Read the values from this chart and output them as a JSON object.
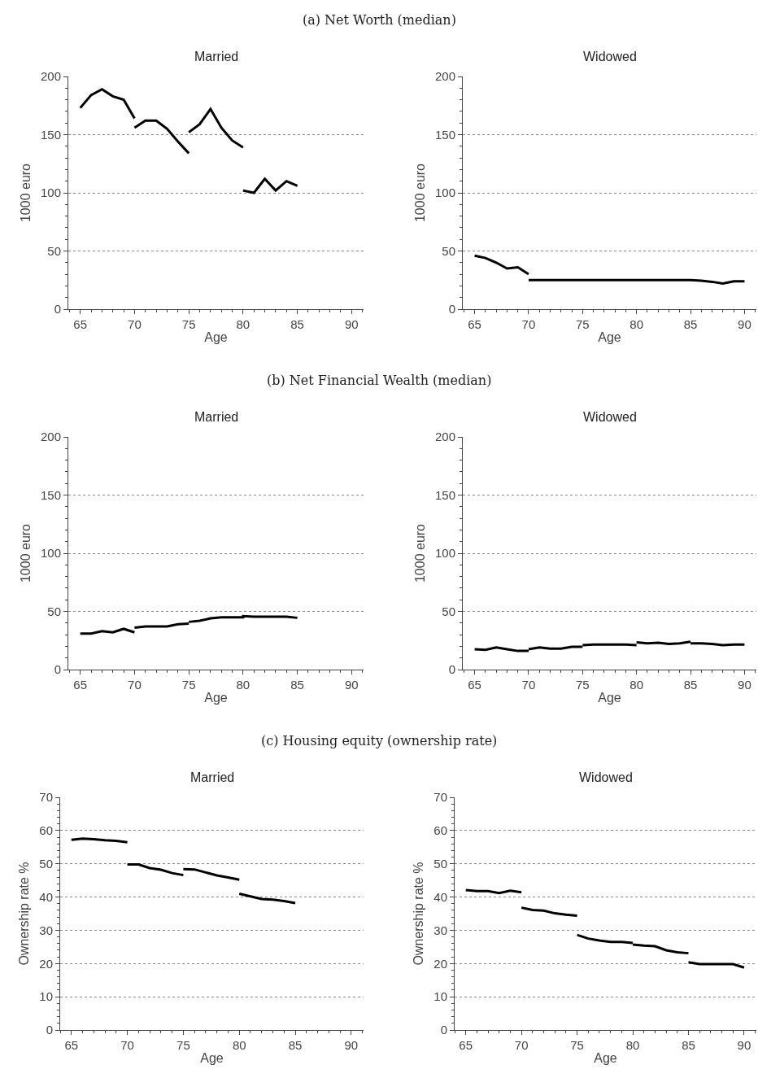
{
  "chart_data": [
    {
      "type": "line",
      "title": "Married",
      "xlabel": "Age",
      "ylabel": "1000 euro",
      "annotations": [
        "(a) Net Worth (median)"
      ],
      "xlim": [
        63.9,
        91.1
      ],
      "xticks": [
        65,
        70,
        75,
        80,
        85,
        90
      ],
      "ylim": [
        0,
        200
      ],
      "yticks": [
        0,
        50,
        100,
        150,
        200
      ],
      "grid": "y",
      "line_style": "solid",
      "series": [
        {
          "color": "#000000",
          "x": [
            65,
            66,
            67,
            68,
            69,
            70
          ],
          "values": [
            173,
            184,
            189,
            183,
            180,
            164
          ]
        },
        {
          "color": "#000000",
          "x": [
            70,
            71,
            72,
            73,
            74,
            75
          ],
          "values": [
            156,
            162,
            162,
            155,
            144,
            134
          ]
        },
        {
          "color": "#000000",
          "x": [
            75,
            76,
            77,
            78,
            79,
            80
          ],
          "values": [
            152,
            159,
            172,
            156,
            145,
            139
          ]
        },
        {
          "color": "#000000",
          "x": [
            80,
            81,
            82,
            83,
            84,
            85
          ],
          "values": [
            102,
            100,
            112,
            102,
            110,
            106
          ]
        }
      ]
    },
    {
      "type": "line",
      "title": "Widowed",
      "xlabel": "Age",
      "ylabel": "1000 euro",
      "xlim": [
        63.9,
        91.1
      ],
      "xticks": [
        65,
        70,
        75,
        80,
        85,
        90
      ],
      "ylim": [
        0,
        200
      ],
      "yticks": [
        0,
        50,
        100,
        150,
        200
      ],
      "grid": "y",
      "line_style": "solid",
      "series": [
        {
          "color": "#000000",
          "x": [
            65,
            66,
            67,
            68,
            69,
            70
          ],
          "values": [
            46,
            44,
            40,
            35,
            36,
            30
          ]
        },
        {
          "color": "#000000",
          "x": [
            70,
            71,
            72,
            73,
            74,
            75,
            75,
            76,
            77,
            78,
            79,
            80,
            80,
            81,
            82,
            83,
            84,
            85,
            85,
            86,
            87,
            88,
            89,
            90
          ],
          "values": [
            25,
            25,
            25,
            25,
            25,
            25,
            25,
            25,
            25,
            25,
            25,
            25,
            25,
            25,
            25,
            25,
            25,
            25,
            25,
            24.5,
            23.5,
            22,
            24,
            24
          ]
        }
      ]
    },
    {
      "type": "line",
      "title": "Married",
      "xlabel": "Age",
      "ylabel": "1000 euro",
      "annotations": [
        "(b) Net Financial Wealth (median)"
      ],
      "xlim": [
        63.9,
        91.1
      ],
      "xticks": [
        65,
        70,
        75,
        80,
        85,
        90
      ],
      "ylim": [
        0,
        200
      ],
      "yticks": [
        0,
        50,
        100,
        150,
        200
      ],
      "grid": "y",
      "line_style": "solid",
      "series": [
        {
          "color": "#000000",
          "x": [
            65,
            66,
            67,
            68,
            69,
            70
          ],
          "values": [
            31,
            31,
            33,
            32,
            35,
            32
          ]
        },
        {
          "color": "#000000",
          "x": [
            70,
            71,
            72,
            73,
            74,
            75
          ],
          "values": [
            36,
            37,
            37,
            37,
            39,
            39.5
          ]
        },
        {
          "color": "#000000",
          "x": [
            75,
            76,
            77,
            78,
            79,
            80,
            80,
            81,
            82,
            83,
            84,
            85
          ],
          "values": [
            41,
            42,
            44,
            45,
            45,
            45,
            46,
            45.5,
            45.5,
            45.5,
            45.5,
            44.5
          ]
        }
      ]
    },
    {
      "type": "line",
      "title": "Widowed",
      "xlabel": "Age",
      "ylabel": "1000 euro",
      "xlim": [
        63.9,
        91.1
      ],
      "xticks": [
        65,
        70,
        75,
        80,
        85,
        90
      ],
      "ylim": [
        0,
        200
      ],
      "yticks": [
        0,
        50,
        100,
        150,
        200
      ],
      "grid": "y",
      "line_style": "solid",
      "series": [
        {
          "color": "#000000",
          "x": [
            65,
            66,
            67,
            68,
            69,
            70
          ],
          "values": [
            17.5,
            17,
            19,
            17.5,
            16,
            16
          ]
        },
        {
          "color": "#000000",
          "x": [
            70,
            71,
            72,
            73,
            74,
            75
          ],
          "values": [
            17.5,
            19,
            18,
            18,
            19.5,
            19.5
          ]
        },
        {
          "color": "#000000",
          "x": [
            75,
            76,
            77,
            78,
            79,
            80
          ],
          "values": [
            21,
            21.5,
            21.5,
            21.5,
            21.5,
            21
          ]
        },
        {
          "color": "#000000",
          "x": [
            80,
            81,
            82,
            83,
            84,
            85
          ],
          "values": [
            23.5,
            22.5,
            23,
            22,
            22.5,
            24
          ]
        },
        {
          "color": "#000000",
          "x": [
            85,
            86,
            87,
            88,
            89,
            90
          ],
          "values": [
            22.5,
            22.5,
            22,
            21,
            21.5,
            21.5
          ]
        }
      ]
    },
    {
      "type": "line",
      "title": "Married",
      "xlabel": "Age",
      "ylabel": "Ownership rate %",
      "annotations": [
        "(c) Housing equity (ownership rate)"
      ],
      "xlim": [
        64,
        91.1
      ],
      "xticks": [
        65,
        70,
        75,
        80,
        85,
        90
      ],
      "ylim": [
        0,
        70
      ],
      "yticks": [
        0,
        10,
        20,
        30,
        40,
        50,
        60,
        70
      ],
      "grid": "y",
      "line_style": "solid",
      "series": [
        {
          "color": "#000000",
          "x": [
            65,
            66,
            67,
            68,
            69,
            70
          ],
          "values": [
            57.2,
            57.6,
            57.4,
            57.1,
            56.9,
            56.5
          ]
        },
        {
          "color": "#000000",
          "x": [
            70,
            71,
            72,
            73,
            74,
            75
          ],
          "values": [
            49.8,
            49.8,
            48.7,
            48.2,
            47.2,
            46.6
          ]
        },
        {
          "color": "#000000",
          "x": [
            75,
            76,
            77,
            78,
            79,
            80
          ],
          "values": [
            48.4,
            48.3,
            47.4,
            46.5,
            45.9,
            45.2
          ]
        },
        {
          "color": "#000000",
          "x": [
            80,
            81,
            82,
            83,
            84,
            85
          ],
          "values": [
            41,
            40.2,
            39.4,
            39.2,
            38.8,
            38.2
          ]
        }
      ]
    },
    {
      "type": "line",
      "title": "Widowed",
      "xlabel": "Age",
      "ylabel": "Ownership rate %",
      "xlim": [
        64,
        91.1
      ],
      "xticks": [
        65,
        70,
        75,
        80,
        85,
        90
      ],
      "ylim": [
        0,
        70
      ],
      "yticks": [
        0,
        10,
        20,
        30,
        40,
        50,
        60,
        70
      ],
      "grid": "y",
      "line_style": "solid",
      "series": [
        {
          "color": "#000000",
          "x": [
            65,
            66,
            67,
            68,
            69,
            70
          ],
          "values": [
            42.1,
            41.8,
            41.8,
            41.2,
            41.9,
            41.4
          ]
        },
        {
          "color": "#000000",
          "x": [
            70,
            71,
            72,
            73,
            74,
            75
          ],
          "values": [
            36.8,
            36.1,
            35.9,
            35.1,
            34.7,
            34.4
          ]
        },
        {
          "color": "#000000",
          "x": [
            75,
            76,
            77,
            78,
            79,
            80
          ],
          "values": [
            28.6,
            27.5,
            26.9,
            26.5,
            26.5,
            26.2
          ]
        },
        {
          "color": "#000000",
          "x": [
            80,
            81,
            82,
            83,
            84,
            85
          ],
          "values": [
            25.7,
            25.4,
            25.2,
            24,
            23.4,
            23.1
          ]
        },
        {
          "color": "#000000",
          "x": [
            85,
            86,
            87,
            88,
            89,
            90
          ],
          "values": [
            20.4,
            19.8,
            19.8,
            19.8,
            19.8,
            18.8
          ]
        }
      ]
    }
  ]
}
